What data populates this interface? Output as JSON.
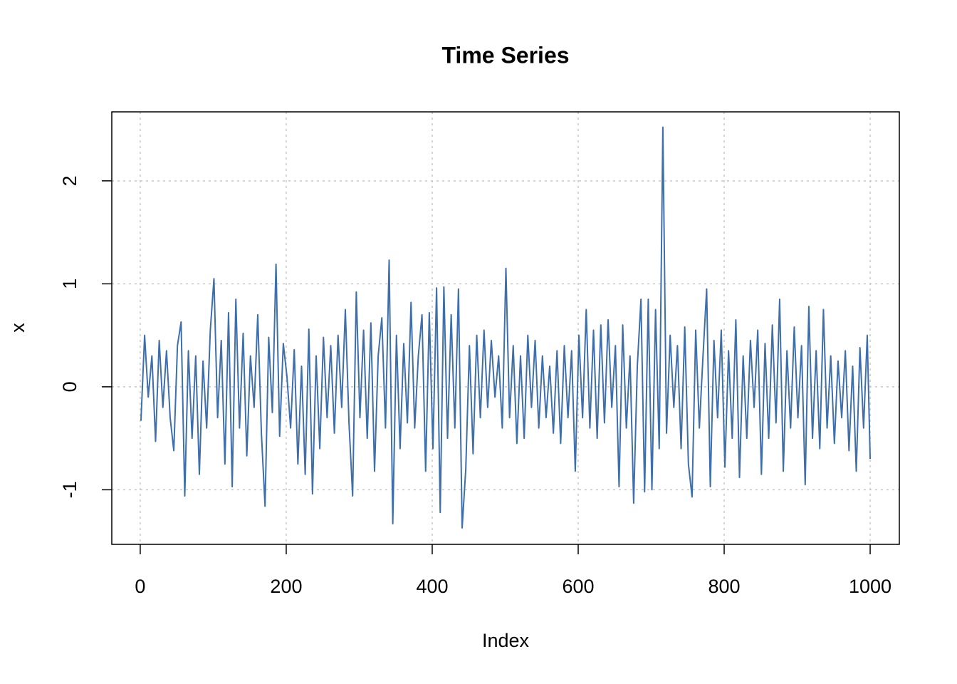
{
  "chart_data": {
    "type": "line",
    "title": "Time Series",
    "x_label": "Index",
    "y_label": "x",
    "color": "#3E6FAA",
    "grid": true,
    "xlim": [
      -38.96,
      1039.96
    ],
    "ylim": [
      -1.53,
      2.67
    ],
    "xticks": [
      0,
      200,
      400,
      600,
      800,
      1000
    ],
    "yticks": [
      -1,
      0,
      1,
      2
    ],
    "x": [
      1,
      6,
      11,
      16,
      21,
      26,
      31,
      36,
      41,
      46,
      51,
      56,
      61,
      66,
      71,
      76,
      81,
      86,
      91,
      96,
      101,
      106,
      111,
      116,
      121,
      126,
      131,
      136,
      141,
      146,
      151,
      156,
      161,
      166,
      171,
      176,
      181,
      186,
      191,
      196,
      201,
      206,
      211,
      216,
      221,
      226,
      231,
      236,
      241,
      246,
      251,
      256,
      261,
      266,
      271,
      276,
      281,
      286,
      291,
      296,
      301,
      306,
      311,
      316,
      321,
      326,
      331,
      336,
      341,
      346,
      351,
      356,
      361,
      366,
      371,
      376,
      381,
      386,
      391,
      396,
      401,
      406,
      411,
      416,
      421,
      426,
      431,
      436,
      441,
      446,
      451,
      456,
      461,
      466,
      471,
      476,
      481,
      486,
      491,
      496,
      501,
      506,
      511,
      516,
      521,
      526,
      531,
      536,
      541,
      546,
      551,
      556,
      561,
      566,
      571,
      576,
      581,
      586,
      591,
      596,
      601,
      606,
      611,
      616,
      621,
      626,
      631,
      636,
      641,
      646,
      651,
      656,
      661,
      666,
      671,
      676,
      681,
      686,
      691,
      696,
      701,
      706,
      711,
      716,
      721,
      726,
      731,
      736,
      741,
      746,
      751,
      756,
      761,
      766,
      771,
      776,
      781,
      786,
      791,
      796,
      801,
      806,
      811,
      816,
      821,
      826,
      831,
      836,
      841,
      846,
      851,
      856,
      861,
      866,
      871,
      876,
      881,
      886,
      891,
      896,
      901,
      906,
      911,
      916,
      921,
      926,
      931,
      936,
      941,
      946,
      951,
      956,
      961,
      966,
      971,
      976,
      981,
      986,
      991,
      996,
      1000
    ],
    "values": [
      -0.33,
      0.5,
      -0.1,
      0.3,
      -0.53,
      0.45,
      -0.2,
      0.35,
      -0.3,
      -0.62,
      0.4,
      0.63,
      -1.06,
      0.35,
      -0.5,
      0.3,
      -0.85,
      0.25,
      -0.4,
      0.55,
      1.05,
      -0.3,
      0.45,
      -0.75,
      0.72,
      -0.97,
      0.85,
      -0.4,
      0.52,
      -0.67,
      0.3,
      -0.2,
      0.7,
      -0.45,
      -1.16,
      0.48,
      -0.25,
      1.19,
      -0.48,
      0.42,
      0.1,
      -0.4,
      0.36,
      -0.75,
      0.2,
      -0.85,
      0.56,
      -1.04,
      0.3,
      -0.6,
      0.48,
      -0.3,
      0.4,
      -0.45,
      0.5,
      -0.2,
      0.75,
      -0.35,
      -1.06,
      0.92,
      -0.3,
      0.55,
      -0.5,
      0.62,
      -0.82,
      0.3,
      0.67,
      -0.4,
      1.23,
      -1.33,
      0.5,
      -0.6,
      0.42,
      -0.35,
      0.82,
      -0.4,
      0.3,
      0.7,
      -0.82,
      0.72,
      -0.6,
      0.96,
      -1.22,
      0.97,
      -0.5,
      0.7,
      -0.4,
      0.95,
      -1.37,
      -0.8,
      0.4,
      -0.65,
      0.5,
      -0.3,
      0.55,
      -0.2,
      0.45,
      -0.1,
      0.3,
      -0.4,
      1.15,
      -0.3,
      0.4,
      -0.55,
      0.3,
      -0.5,
      0.5,
      -0.2,
      0.45,
      -0.4,
      0.3,
      -0.3,
      0.2,
      -0.45,
      0.35,
      -0.55,
      0.4,
      -0.3,
      0.35,
      -0.82,
      0.5,
      -0.3,
      0.75,
      -0.4,
      0.55,
      -0.5,
      0.6,
      -0.35,
      0.65,
      -0.2,
      0.4,
      -0.97,
      0.6,
      -0.4,
      0.3,
      -1.13,
      0.2,
      0.85,
      -1.02,
      0.85,
      -1.0,
      0.75,
      -0.6,
      2.52,
      -0.45,
      0.5,
      -0.2,
      0.4,
      -0.6,
      0.58,
      -0.75,
      -1.07,
      0.55,
      -0.4,
      0.3,
      0.95,
      -0.97,
      0.45,
      -0.3,
      0.55,
      -0.78,
      0.35,
      -0.5,
      0.65,
      -0.88,
      0.3,
      -0.5,
      0.45,
      -0.2,
      0.55,
      -0.85,
      0.42,
      -0.5,
      0.6,
      -0.35,
      0.85,
      -0.82,
      0.35,
      -0.4,
      0.58,
      -0.3,
      0.4,
      -0.95,
      0.78,
      -0.5,
      0.35,
      -0.6,
      0.75,
      -0.4,
      0.3,
      -0.55,
      0.25,
      -0.3,
      0.35,
      -0.62,
      0.2,
      -0.82,
      0.38,
      -0.4,
      0.5,
      -0.7
    ]
  }
}
